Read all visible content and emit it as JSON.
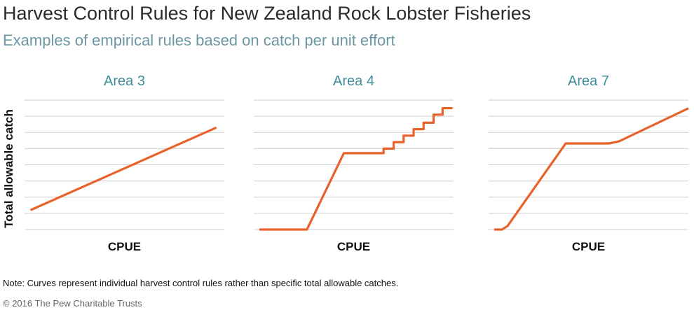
{
  "title": "Harvest Control Rules for New Zealand Rock Lobster Fisheries",
  "subtitle": "Examples of empirical rules based on catch per unit effort",
  "y_label": "Total allowable catch",
  "note": "Note: Curves represent individual harvest control rules rather than specific total allowable catches.",
  "source": "© 2016 The Pew Charitable Trusts",
  "chart_data": [
    {
      "type": "line",
      "title": "Area 3",
      "x_label": "CPUE",
      "color": "#e8622c",
      "x": [
        0.3,
        9.6
      ],
      "values": [
        1.2,
        6.3
      ],
      "xlim": [
        0,
        10
      ],
      "ylim": [
        0,
        8
      ],
      "yticks": [
        0,
        1,
        2,
        3,
        4,
        5,
        6,
        7,
        8
      ],
      "grid": true
    },
    {
      "type": "line",
      "title": "Area 4",
      "x_label": "CPUE",
      "color": "#e8622c",
      "x": [
        0.28,
        2.66,
        4.51,
        6.5,
        6.5,
        7.0,
        7.0,
        7.5,
        7.5,
        8.0,
        8.0,
        8.5,
        8.5,
        9.0,
        9.0,
        9.45,
        9.45,
        9.95
      ],
      "values": [
        0,
        0,
        4.72,
        4.72,
        5.0,
        5.0,
        5.4,
        5.4,
        5.8,
        5.8,
        6.2,
        6.2,
        6.6,
        6.6,
        7.1,
        7.1,
        7.5,
        7.5
      ],
      "xlim": [
        0,
        10
      ],
      "ylim": [
        0,
        8
      ],
      "yticks": [
        0,
        1,
        2,
        3,
        4,
        5,
        6,
        7,
        8
      ],
      "grid": true
    },
    {
      "type": "line",
      "title": "Area 7",
      "x_label": "CPUE",
      "color": "#e8622c",
      "x": [
        0.28,
        0.67,
        0.95,
        3.86,
        6.04,
        6.53,
        10.0
      ],
      "values": [
        0,
        0,
        0.22,
        5.32,
        5.32,
        5.45,
        7.49
      ],
      "xlim": [
        0,
        10
      ],
      "ylim": [
        0,
        8
      ],
      "yticks": [
        0,
        1,
        2,
        3,
        4,
        5,
        6,
        7,
        8
      ],
      "grid": true
    }
  ]
}
